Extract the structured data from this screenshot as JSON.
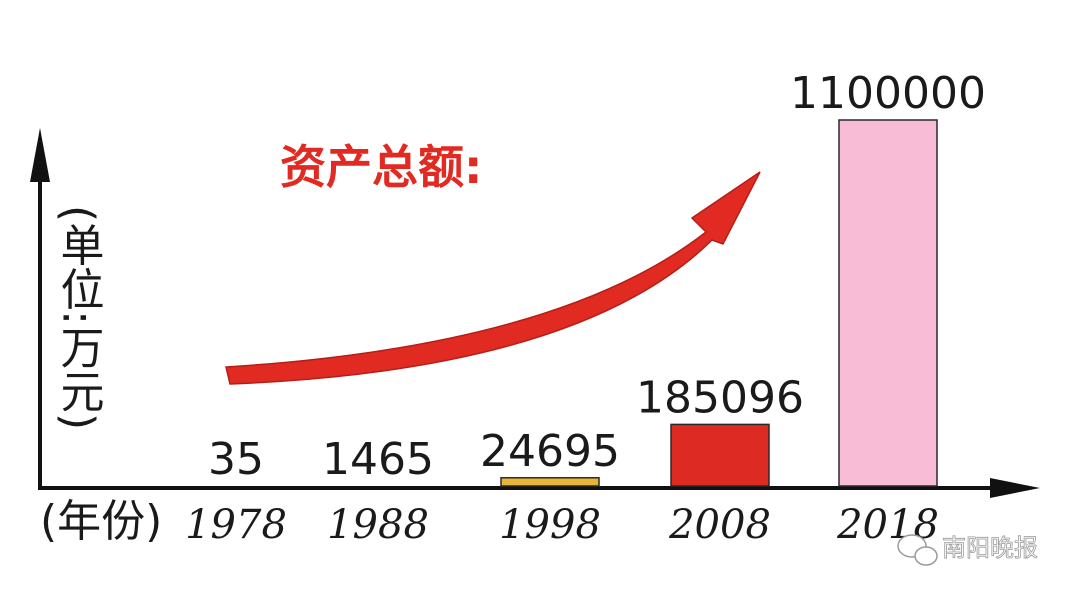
{
  "chart_data": {
    "type": "bar",
    "title": "资产总额:",
    "ylabel": "(单位:万元)",
    "xlabel": "(年份)",
    "categories": [
      "1978",
      "1988",
      "1998",
      "2008",
      "2018"
    ],
    "values": [
      35,
      1465,
      24695,
      185096,
      1100000
    ],
    "value_labels": [
      "35",
      "1465",
      "24695",
      "185096",
      "1100000"
    ],
    "bar_colors": [
      "#d62a22",
      "#d62a22",
      "#e8b43a",
      "#dd2a22",
      "#f8bcd6"
    ],
    "arrow_color": "#e02a22",
    "grid": false
  },
  "watermark": "南阳晚报"
}
